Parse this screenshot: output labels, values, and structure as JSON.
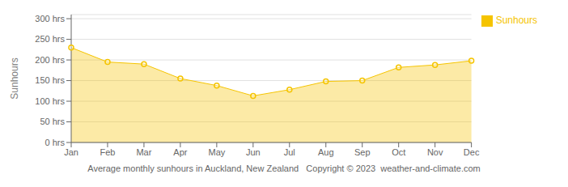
{
  "chart_data": {
    "type": "area",
    "ylabel": "Sunhours",
    "categories": [
      "Jan",
      "Feb",
      "Mar",
      "Apr",
      "May",
      "Jun",
      "Jul",
      "Aug",
      "Sep",
      "Oct",
      "Nov",
      "Dec"
    ],
    "series": [
      {
        "name": "Sunhours",
        "color": "#F5C400",
        "marker": "o",
        "values": [
          230,
          195,
          190,
          155,
          138,
          113,
          128,
          148,
          150,
          182,
          188,
          198
        ]
      }
    ],
    "ylim": [
      0,
      310
    ],
    "yticks": [
      {
        "value": 0,
        "label": "0 hrs"
      },
      {
        "value": 50,
        "label": "50 hrs"
      },
      {
        "value": 100,
        "label": "100 hrs"
      },
      {
        "value": 150,
        "label": "150 hrs"
      },
      {
        "value": 200,
        "label": "200 hrs"
      },
      {
        "value": 250,
        "label": "250 hrs"
      },
      {
        "value": 300,
        "label": "300 hrs"
      }
    ],
    "grid": true,
    "legend": "upper right",
    "annotations": [
      "Average monthly sunhours in Auckland, New Zealand   Copyright © 2023  weather-and-climate.com"
    ]
  }
}
